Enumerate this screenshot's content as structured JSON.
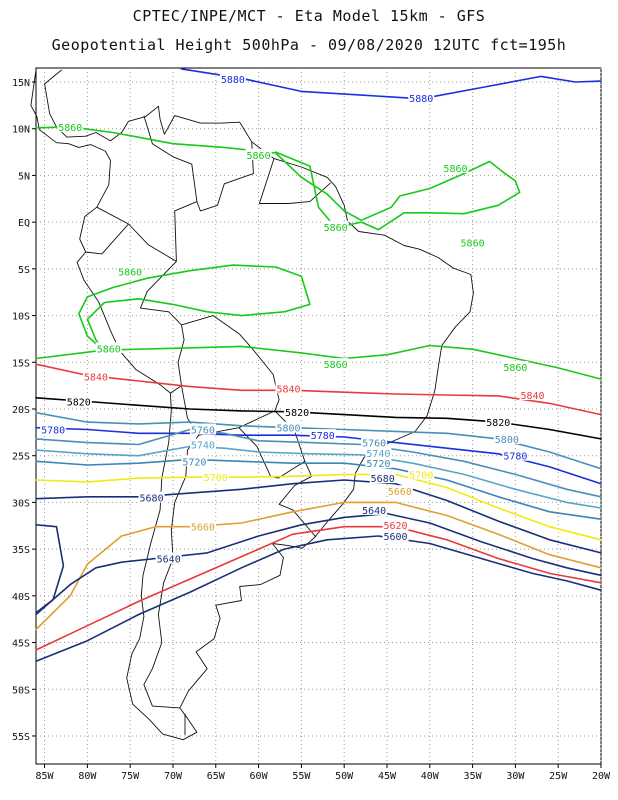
{
  "header": {
    "line1": "CPTEC/INPE/MCT -  Eta Model 15km - GFS",
    "line2": "Geopotential Height 500hPa - 09/08/2020 12UTC fct=195h"
  },
  "axes": {
    "lat_labels": [
      "15N",
      "10N",
      "5N",
      "EQ",
      "5S",
      "10S",
      "15S",
      "20S",
      "25S",
      "30S",
      "35S",
      "40S",
      "45S",
      "50S",
      "55S"
    ],
    "lon_labels": [
      "85W",
      "80W",
      "75W",
      "70W",
      "65W",
      "60W",
      "55W",
      "50W",
      "45W",
      "40W",
      "35W",
      "30W",
      "25W",
      "20W"
    ]
  },
  "map": {
    "extent": {
      "lon": [
        -86,
        -20
      ],
      "lat": [
        -58,
        16.5
      ]
    },
    "grid": "dotted, every 5 degrees",
    "contour_interval_gpm": 20
  },
  "contours": [
    {
      "level": "5880",
      "color": "#1a2fe0",
      "labels": [
        [
          -63,
          15.3
        ],
        [
          -41,
          13.3
        ]
      ]
    },
    {
      "level": "5860",
      "color": "#18c918",
      "labels": [
        [
          -82,
          10.2
        ],
        [
          -60,
          7.2
        ],
        [
          -37,
          5.8
        ],
        [
          -51,
          -0.5
        ],
        [
          -35,
          -2.2
        ],
        [
          -75,
          -5.3
        ],
        [
          -77.5,
          -13.5
        ],
        [
          -51,
          -15.2
        ],
        [
          -30,
          -15.5
        ]
      ]
    },
    {
      "level": "5840",
      "color": "#e83a3a",
      "labels": [
        [
          -79,
          -16.5
        ],
        [
          -56.5,
          -17.8
        ],
        [
          -28,
          -18.5
        ]
      ]
    },
    {
      "level": "5820",
      "color": "#000000",
      "labels": [
        [
          -81,
          -19.2
        ],
        [
          -55.5,
          -20.3
        ],
        [
          -32,
          -21.4
        ]
      ]
    },
    {
      "level": "5800",
      "color": "#4a8fb6",
      "labels": [
        [
          -56.5,
          -22
        ],
        [
          -31,
          -23.2
        ]
      ]
    },
    {
      "level": "5780",
      "color": "#1a2fe0",
      "labels": [
        [
          -84,
          -22.2
        ],
        [
          -52.5,
          -22.8
        ],
        [
          -30,
          -25
        ]
      ]
    },
    {
      "level": "5760",
      "color": "#4a8fb6",
      "labels": [
        [
          -66.5,
          -22.2
        ],
        [
          -46.5,
          -23.6
        ]
      ]
    },
    {
      "level": "5740",
      "color": "#5aa4c8",
      "labels": [
        [
          -66.5,
          -23.8
        ],
        [
          -46,
          -24.7
        ]
      ]
    },
    {
      "level": "5720",
      "color": "#3a86b8",
      "labels": [
        [
          -67.5,
          -25.6
        ],
        [
          -46,
          -25.8
        ]
      ]
    },
    {
      "level": "5700",
      "color": "#f2ea10",
      "labels": [
        [
          -65,
          -27.3
        ],
        [
          -41,
          -27
        ]
      ]
    },
    {
      "level": "5680",
      "color": "#1a2f78",
      "labels": [
        [
          -72.5,
          -29.5
        ],
        [
          -45.5,
          -27.4
        ]
      ]
    },
    {
      "level": "5660",
      "color": "#e0a030",
      "labels": [
        [
          -66.5,
          -32.6
        ],
        [
          -43.5,
          -28.8
        ]
      ]
    },
    {
      "level": "5640",
      "color": "#1a2f78",
      "labels": [
        [
          -70.5,
          -36
        ],
        [
          -46.5,
          -30.8
        ]
      ]
    },
    {
      "level": "5620",
      "color": "#e83a3a",
      "labels": [
        [
          -44,
          -32.4
        ]
      ]
    },
    {
      "level": "5600",
      "color": "#1a2f78",
      "labels": [
        [
          -44,
          -33.6
        ]
      ]
    }
  ]
}
